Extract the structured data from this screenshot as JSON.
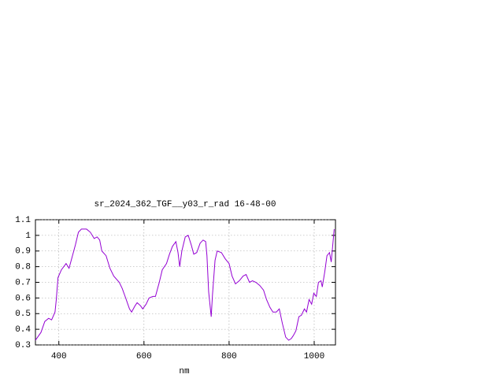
{
  "chart_data": {
    "type": "line",
    "title": "sr_2024_362_TGF__y03_r_rad 16-48-00",
    "x_label": "nm",
    "xlim": [
      345,
      1050
    ],
    "xticks": [
      400,
      600,
      800,
      1000
    ],
    "ylim": [
      0.3,
      1.1
    ],
    "yticks": [
      0.3,
      0.4,
      0.5,
      0.6,
      0.7,
      0.8,
      0.9,
      1,
      1.1
    ],
    "grid": true,
    "x": [
      345,
      358,
      367,
      376,
      383,
      391,
      394,
      398,
      406,
      417,
      424,
      431,
      439,
      446,
      453,
      465,
      474,
      483,
      490,
      496,
      501,
      511,
      520,
      529,
      542,
      549,
      557,
      566,
      571,
      579,
      584,
      592,
      597,
      605,
      612,
      621,
      627,
      636,
      643,
      653,
      660,
      667,
      675,
      680,
      684,
      689,
      697,
      704,
      711,
      717,
      724,
      732,
      739,
      745,
      748,
      752,
      758,
      761,
      767,
      772,
      782,
      791,
      800,
      807,
      815,
      824,
      833,
      840,
      848,
      855,
      863,
      872,
      881,
      888,
      896,
      903,
      911,
      918,
      925,
      933,
      940,
      946,
      951,
      957,
      964,
      970,
      977,
      982,
      988,
      994,
      999,
      1005,
      1010,
      1016,
      1019,
      1025,
      1030,
      1036,
      1040,
      1043,
      1047
    ],
    "series": [
      {
        "color": "#9400d3",
        "values": [
          0.33,
          0.38,
          0.45,
          0.47,
          0.46,
          0.51,
          0.59,
          0.73,
          0.78,
          0.82,
          0.79,
          0.86,
          0.94,
          1.02,
          1.04,
          1.04,
          1.02,
          0.98,
          0.99,
          0.97,
          0.9,
          0.87,
          0.79,
          0.74,
          0.7,
          0.66,
          0.6,
          0.53,
          0.51,
          0.55,
          0.57,
          0.55,
          0.53,
          0.56,
          0.6,
          0.61,
          0.61,
          0.7,
          0.78,
          0.82,
          0.88,
          0.93,
          0.96,
          0.89,
          0.8,
          0.9,
          0.99,
          1.0,
          0.94,
          0.88,
          0.89,
          0.95,
          0.97,
          0.96,
          0.87,
          0.64,
          0.48,
          0.62,
          0.84,
          0.9,
          0.89,
          0.85,
          0.82,
          0.74,
          0.69,
          0.71,
          0.74,
          0.75,
          0.7,
          0.71,
          0.7,
          0.68,
          0.65,
          0.59,
          0.54,
          0.51,
          0.51,
          0.53,
          0.44,
          0.35,
          0.33,
          0.34,
          0.36,
          0.39,
          0.48,
          0.49,
          0.53,
          0.51,
          0.59,
          0.56,
          0.63,
          0.61,
          0.7,
          0.71,
          0.67,
          0.77,
          0.87,
          0.89,
          0.83,
          0.92,
          1.04
        ]
      }
    ]
  }
}
